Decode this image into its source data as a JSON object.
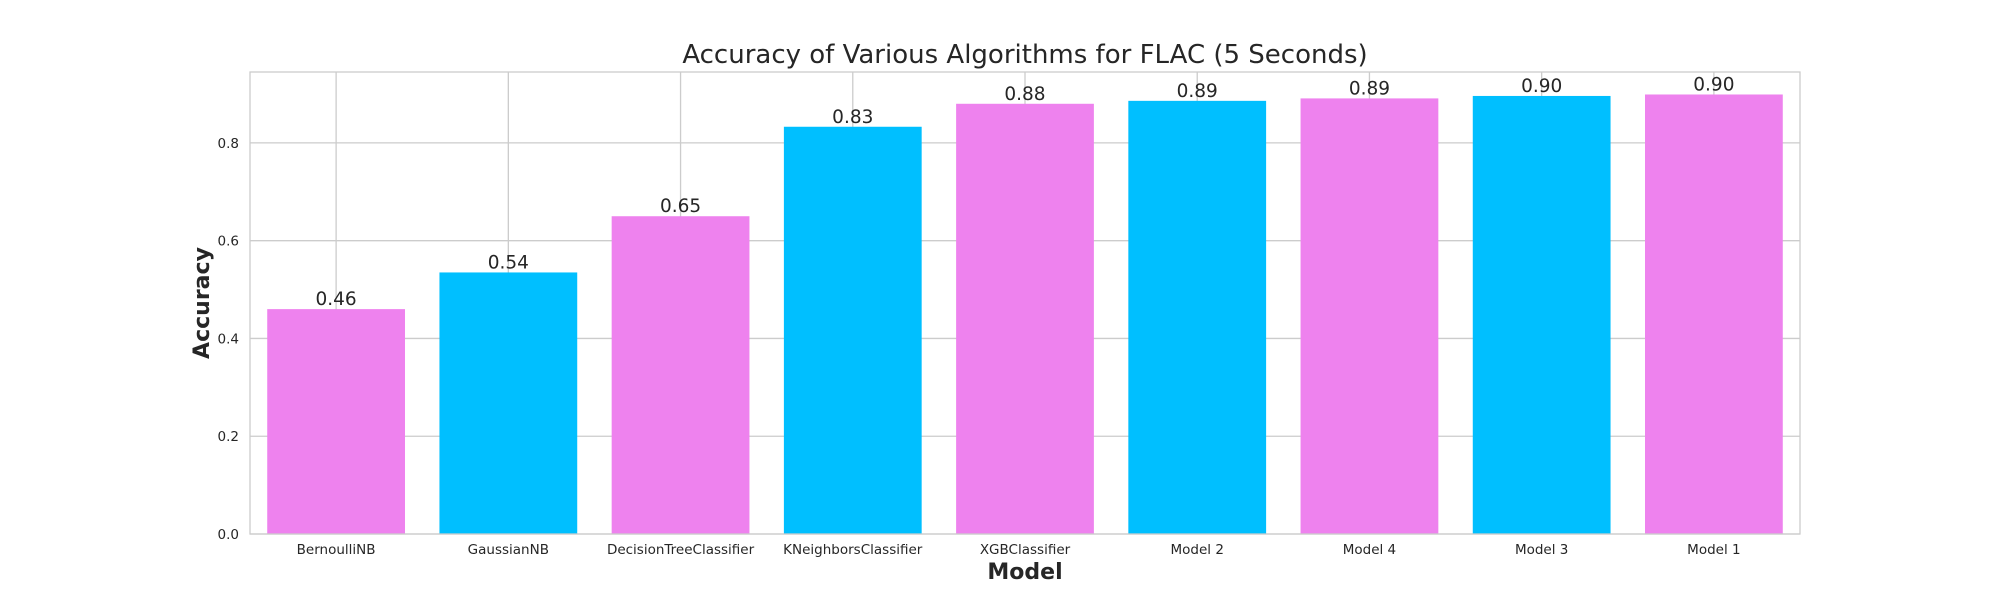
{
  "chart_data": {
    "type": "bar",
    "title": "Accuracy of Various Algorithms for FLAC (5 Seconds)",
    "xlabel": "Model",
    "ylabel": "Accuracy",
    "categories": [
      "BernoulliNB",
      "GaussianNB",
      "DecisionTreeClassifier",
      "KNeighborsClassifier",
      "XGBClassifier",
      "Model 2",
      "Model 4",
      "Model 3",
      "Model 1"
    ],
    "values": [
      0.46,
      0.535,
      0.65,
      0.833,
      0.88,
      0.886,
      0.891,
      0.896,
      0.899
    ],
    "data_labels": [
      "0.46",
      "0.54",
      "0.65",
      "0.83",
      "0.88",
      "0.89",
      "0.89",
      "0.90",
      "0.90"
    ],
    "bar_colors": [
      "#ee82ee",
      "#00bfff",
      "#ee82ee",
      "#00bfff",
      "#ee82ee",
      "#00bfff",
      "#ee82ee",
      "#00bfff",
      "#ee82ee"
    ],
    "ylim": [
      0,
      0.945
    ],
    "yticks": [
      0.0,
      0.2,
      0.4,
      0.6,
      0.8
    ],
    "ytick_labels": [
      "0.0",
      "0.2",
      "0.4",
      "0.6",
      "0.8"
    ],
    "grid": true,
    "legend": "none"
  }
}
